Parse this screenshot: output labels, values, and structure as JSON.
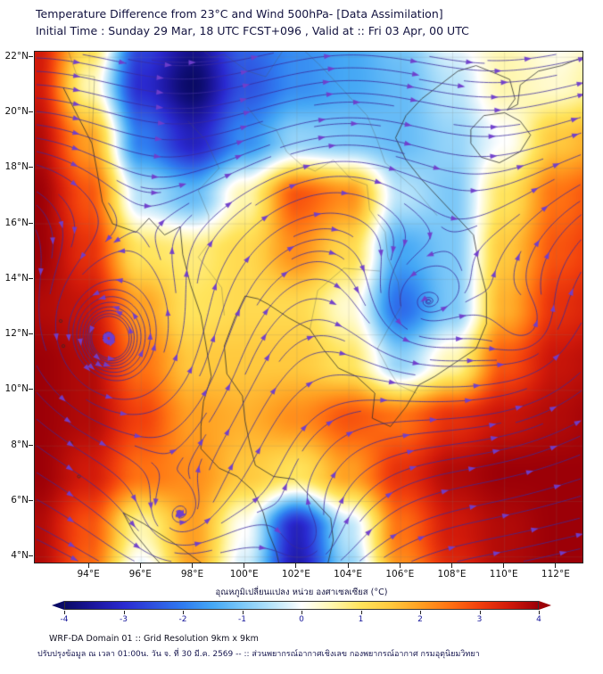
{
  "header": {
    "title_line1": "Temperature Difference from 23°C and Wind 500hPa- [Data Assimilation]",
    "title_line2": "Initial Time : Sunday 29 Mar, 18 UTC FCST+096 , Valid at ::  Fri 03 Apr, 00 UTC"
  },
  "axes": {
    "lon_range": [
      91.9,
      113.0
    ],
    "lat_range": [
      3.8,
      22.2
    ],
    "lat_values": [
      22,
      20,
      18,
      16,
      14,
      12,
      10,
      8,
      6,
      4
    ],
    "lat_ticks": [
      "22°N",
      "20°N",
      "18°N",
      "16°N",
      "14°N",
      "12°N",
      "10°N",
      "8°N",
      "6°N",
      "4°N"
    ],
    "lon_values": [
      94,
      96,
      98,
      100,
      102,
      104,
      106,
      108,
      110,
      112
    ],
    "lon_ticks": [
      "94°E",
      "96°E",
      "98°E",
      "100°E",
      "102°E",
      "104°E",
      "106°E",
      "108°E",
      "110°E",
      "112°E"
    ]
  },
  "colorbar": {
    "title": "อุณหภูมิเปลี่ยนแปลง หน่วย องศาเซลเซียส (°C)",
    "ticks": [
      -4,
      -3,
      -2,
      -1,
      0,
      1,
      2,
      3,
      4
    ],
    "stops": [
      {
        "t": -4.0,
        "c": "#0a0a66"
      },
      {
        "t": -3.5,
        "c": "#1d17a0"
      },
      {
        "t": -3.0,
        "c": "#2a2ad0"
      },
      {
        "t": -2.5,
        "c": "#2f52e0"
      },
      {
        "t": -2.0,
        "c": "#2f7cf0"
      },
      {
        "t": -1.5,
        "c": "#45a8f5"
      },
      {
        "t": -1.0,
        "c": "#7cc8f8"
      },
      {
        "t": -0.5,
        "c": "#b8e4fa"
      },
      {
        "t": -0.15,
        "c": "#e6f5fc"
      },
      {
        "t": 0.0,
        "c": "#ffffff"
      },
      {
        "t": 0.15,
        "c": "#fffde8"
      },
      {
        "t": 0.5,
        "c": "#fff7b0"
      },
      {
        "t": 1.0,
        "c": "#ffe45c"
      },
      {
        "t": 1.5,
        "c": "#ffc93e"
      },
      {
        "t": 2.0,
        "c": "#ffa022"
      },
      {
        "t": 2.5,
        "c": "#ff7212"
      },
      {
        "t": 3.0,
        "c": "#f2400c"
      },
      {
        "t": 3.5,
        "c": "#d21a0a"
      },
      {
        "t": 4.0,
        "c": "#9c0007"
      }
    ]
  },
  "footer": {
    "line1": "WRF-DA Domain 01 :: Grid Resolution 9km x 9km",
    "line2": "ปรับปรุงข้อมูล ณ เวลา 01:00น. วัน จ. ที่ 30 มี.ค. 2569 -- :: ส่วนพยากรณ์อากาศเชิงเลข กองพยากรณ์อากาศ กรมอุตุนิยมวิทยา"
  },
  "chart_data": {
    "type": "heatmap",
    "title": "Temperature Difference from 23°C and Wind 500hPa- [Data Assimilation]",
    "xlabel": "Longitude (°E)",
    "ylabel": "Latitude (°N)",
    "xlim": [
      91.9,
      113.0
    ],
    "ylim": [
      3.8,
      22.2
    ],
    "units": "°C",
    "value_range": [
      -4,
      4
    ],
    "grid": {
      "lats": [
        23,
        21,
        19,
        17,
        15,
        13,
        11,
        9,
        7,
        5,
        3
      ],
      "lons": [
        92,
        94,
        96,
        98,
        100,
        102,
        104,
        106,
        108,
        110,
        112,
        114
      ],
      "temp_anomaly_c": [
        [
          3.5,
          1.5,
          -2.5,
          -3.5,
          -2.2,
          -1.8,
          -1.5,
          -1.0,
          0.0,
          0.5,
          0.0,
          0.5
        ],
        [
          3.5,
          0.5,
          -3.0,
          -4.0,
          -2.5,
          -1.8,
          -1.5,
          -1.2,
          -0.5,
          0.5,
          0.3,
          0.8
        ],
        [
          3.8,
          2.0,
          -2.0,
          -3.2,
          -1.8,
          -0.8,
          -1.0,
          -1.2,
          -0.8,
          0.0,
          1.5,
          2.0
        ],
        [
          4.0,
          2.8,
          -0.5,
          -1.2,
          0.5,
          2.8,
          2.2,
          -0.5,
          -1.0,
          1.0,
          2.5,
          3.0
        ],
        [
          4.0,
          3.2,
          1.0,
          0.8,
          1.2,
          2.2,
          1.2,
          -1.5,
          -1.0,
          1.5,
          2.8,
          3.2
        ],
        [
          3.8,
          3.6,
          2.0,
          1.0,
          1.2,
          1.2,
          0.3,
          -2.2,
          -1.0,
          1.8,
          3.2,
          3.5
        ],
        [
          4.0,
          3.8,
          2.5,
          1.5,
          1.5,
          1.5,
          1.0,
          -0.8,
          0.5,
          2.8,
          3.6,
          3.8
        ],
        [
          4.0,
          3.8,
          3.0,
          2.0,
          1.8,
          2.2,
          2.8,
          2.5,
          3.2,
          3.6,
          3.8,
          4.0
        ],
        [
          4.0,
          3.5,
          2.5,
          2.2,
          1.5,
          1.0,
          2.0,
          3.2,
          3.8,
          4.0,
          4.0,
          4.0
        ],
        [
          3.8,
          2.8,
          0.5,
          2.0,
          0.0,
          -3.2,
          -0.5,
          2.5,
          3.5,
          3.8,
          4.0,
          4.0
        ],
        [
          3.8,
          2.5,
          -0.5,
          2.0,
          -0.5,
          -3.5,
          -1.0,
          2.0,
          3.2,
          3.8,
          4.0,
          4.0
        ]
      ]
    },
    "wind_model": {
      "level": "500hPa",
      "u_by_lat": [
        [
          3,
          5
        ],
        [
          5,
          5
        ],
        [
          7,
          4.5
        ],
        [
          9,
          4
        ],
        [
          11,
          3.5
        ],
        [
          13,
          5
        ],
        [
          15,
          7
        ],
        [
          17,
          9
        ],
        [
          19,
          11.5
        ],
        [
          21,
          13
        ],
        [
          23,
          14
        ]
      ],
      "wave": {
        "amplitude_north": 2.2,
        "amplitude_south": 0.6,
        "wavelength_deg": 12,
        "phase_lon": 92
      },
      "vortices": [
        {
          "lon": 94.6,
          "lat": 12.0,
          "radius_deg": 2.6,
          "speed": 8.0,
          "rotation": 1
        },
        {
          "lon": 106.6,
          "lat": 13.2,
          "radius_deg": 2.2,
          "speed": 4.5,
          "rotation": 1
        },
        {
          "lon": 97.2,
          "lat": 5.4,
          "radius_deg": 2.0,
          "speed": 5.0,
          "rotation": 1
        },
        {
          "lon": 102.3,
          "lat": 4.6,
          "radius_deg": 1.8,
          "speed": 4.0,
          "rotation": 1
        },
        {
          "lon": 110.8,
          "lat": 12.4,
          "radius_deg": 1.7,
          "speed": 3.5,
          "rotation": 1
        }
      ]
    },
    "geo": {
      "coastlines": [
        [
          [
            93.0,
            20.9
          ],
          [
            93.6,
            19.8
          ],
          [
            94.1,
            18.9
          ],
          [
            94.3,
            17.9
          ],
          [
            94.5,
            16.8
          ],
          [
            94.9,
            16.0
          ],
          [
            95.8,
            15.7
          ],
          [
            96.3,
            16.2
          ],
          [
            96.9,
            15.6
          ],
          [
            97.5,
            15.9
          ],
          [
            97.6,
            14.9
          ],
          [
            97.9,
            13.8
          ],
          [
            98.3,
            12.7
          ],
          [
            98.5,
            11.6
          ],
          [
            98.7,
            10.5
          ],
          [
            98.4,
            9.6
          ],
          [
            98.3,
            8.7
          ],
          [
            98.3,
            7.9
          ],
          [
            99.0,
            7.2
          ],
          [
            99.7,
            6.9
          ],
          [
            100.3,
            6.4
          ],
          [
            100.7,
            5.6
          ],
          [
            100.9,
            4.9
          ],
          [
            101.2,
            4.2
          ],
          [
            101.3,
            3.8
          ]
        ],
        [
          [
            103.2,
            3.8
          ],
          [
            103.4,
            4.6
          ],
          [
            103.3,
            5.4
          ],
          [
            102.6,
            6.1
          ],
          [
            101.9,
            6.8
          ],
          [
            101.1,
            6.9
          ],
          [
            100.4,
            7.3
          ],
          [
            100.2,
            8.0
          ],
          [
            100.0,
            8.9
          ],
          [
            99.9,
            9.8
          ],
          [
            99.3,
            10.6
          ],
          [
            99.2,
            11.6
          ],
          [
            99.6,
            12.6
          ],
          [
            100.0,
            13.4
          ],
          [
            100.5,
            13.3
          ],
          [
            100.9,
            13.1
          ],
          [
            101.7,
            12.6
          ],
          [
            102.5,
            12.2
          ],
          [
            103.0,
            11.5
          ],
          [
            103.6,
            10.8
          ],
          [
            104.3,
            10.5
          ],
          [
            105.0,
            9.9
          ],
          [
            104.9,
            9.0
          ],
          [
            105.6,
            8.7
          ],
          [
            106.2,
            9.4
          ],
          [
            106.7,
            10.2
          ],
          [
            107.3,
            10.5
          ],
          [
            108.1,
            11.0
          ],
          [
            108.9,
            11.5
          ],
          [
            109.3,
            12.4
          ],
          [
            109.3,
            13.5
          ],
          [
            109.0,
            14.6
          ],
          [
            108.8,
            15.6
          ],
          [
            108.2,
            16.2
          ],
          [
            107.5,
            16.9
          ],
          [
            106.8,
            17.6
          ],
          [
            106.2,
            18.3
          ],
          [
            105.8,
            19.1
          ],
          [
            106.2,
            19.9
          ],
          [
            106.8,
            20.5
          ],
          [
            107.5,
            21.0
          ],
          [
            108.2,
            21.5
          ],
          [
            108.9,
            21.7
          ]
        ],
        [
          [
            108.9,
            21.7
          ],
          [
            109.7,
            21.4
          ],
          [
            110.2,
            21.2
          ],
          [
            110.4,
            20.5
          ],
          [
            110.1,
            20.1
          ],
          [
            110.5,
            20.3
          ],
          [
            110.6,
            21.0
          ],
          [
            111.3,
            21.5
          ],
          [
            112.2,
            21.7
          ],
          [
            113.0,
            22.0
          ]
        ],
        [
          [
            108.7,
            19.4
          ],
          [
            109.2,
            19.9
          ],
          [
            110.0,
            20.0
          ],
          [
            110.6,
            19.7
          ],
          [
            111.0,
            19.2
          ],
          [
            110.6,
            18.6
          ],
          [
            109.8,
            18.2
          ],
          [
            109.1,
            18.4
          ],
          [
            108.7,
            18.9
          ],
          [
            108.7,
            19.4
          ]
        ],
        [
          [
            98.6,
            3.6
          ],
          [
            98.0,
            4.0
          ],
          [
            97.1,
            4.6
          ],
          [
            96.1,
            5.2
          ],
          [
            95.3,
            5.6
          ],
          [
            95.7,
            4.9
          ],
          [
            96.4,
            4.1
          ],
          [
            97.0,
            3.5
          ]
        ]
      ],
      "borders_rivers": [
        [
          [
            100.1,
            20.2
          ],
          [
            100.6,
            19.6
          ],
          [
            101.2,
            19.4
          ],
          [
            101.6,
            18.6
          ],
          [
            102.2,
            18.1
          ],
          [
            102.7,
            17.9
          ],
          [
            103.4,
            18.3
          ],
          [
            104.1,
            17.6
          ],
          [
            104.7,
            17.4
          ],
          [
            104.8,
            16.5
          ],
          [
            105.4,
            15.7
          ],
          [
            105.5,
            14.8
          ],
          [
            105.9,
            13.9
          ],
          [
            106.0,
            13.0
          ],
          [
            105.5,
            12.2
          ],
          [
            105.1,
            11.5
          ],
          [
            105.5,
            10.8
          ],
          [
            105.9,
            10.2
          ],
          [
            106.6,
            9.9
          ]
        ],
        [
          [
            97.8,
            19.7
          ],
          [
            98.5,
            19.0
          ],
          [
            99.0,
            18.0
          ],
          [
            98.2,
            17.2
          ],
          [
            98.6,
            16.3
          ],
          [
            98.6,
            15.3
          ],
          [
            98.2,
            14.8
          ],
          [
            99.1,
            13.7
          ],
          [
            99.2,
            12.7
          ]
        ],
        [
          [
            102.1,
            22.4
          ],
          [
            102.9,
            21.7
          ],
          [
            103.9,
            20.7
          ],
          [
            104.7,
            19.9
          ],
          [
            105.1,
            19.0
          ],
          [
            105.4,
            18.2
          ],
          [
            106.5,
            17.3
          ],
          [
            107.4,
            16.3
          ]
        ],
        [
          [
            102.5,
            12.2
          ],
          [
            102.8,
            13.6
          ],
          [
            103.8,
            14.4
          ],
          [
            105.2,
            14.3
          ]
        ],
        [
          [
            97.5,
            22.9
          ],
          [
            98.7,
            22.0
          ],
          [
            99.2,
            22.1
          ],
          [
            100.1,
            21.5
          ],
          [
            100.8,
            21.3
          ],
          [
            101.5,
            22.3
          ],
          [
            102.1,
            22.4
          ]
        ],
        [
          [
            93.2,
            22.2
          ],
          [
            93.5,
            21.4
          ],
          [
            94.2,
            21.3
          ],
          [
            94.1,
            18.9
          ]
        ]
      ],
      "small_islands": [
        [
          92.9,
          12.5
        ],
        [
          93.0,
          11.6
        ],
        [
          93.3,
          8.1
        ],
        [
          93.6,
          6.9
        ]
      ]
    },
    "style": {
      "streamline_color": "rgba(58,42,156,0.88)",
      "arrow_color": "rgba(112,62,204,0.95)",
      "gridline_color": "rgba(120,120,120,0.35)",
      "coast_color": "rgba(45,45,45,0.85)",
      "border_color": "rgba(80,80,80,0.55)"
    }
  }
}
